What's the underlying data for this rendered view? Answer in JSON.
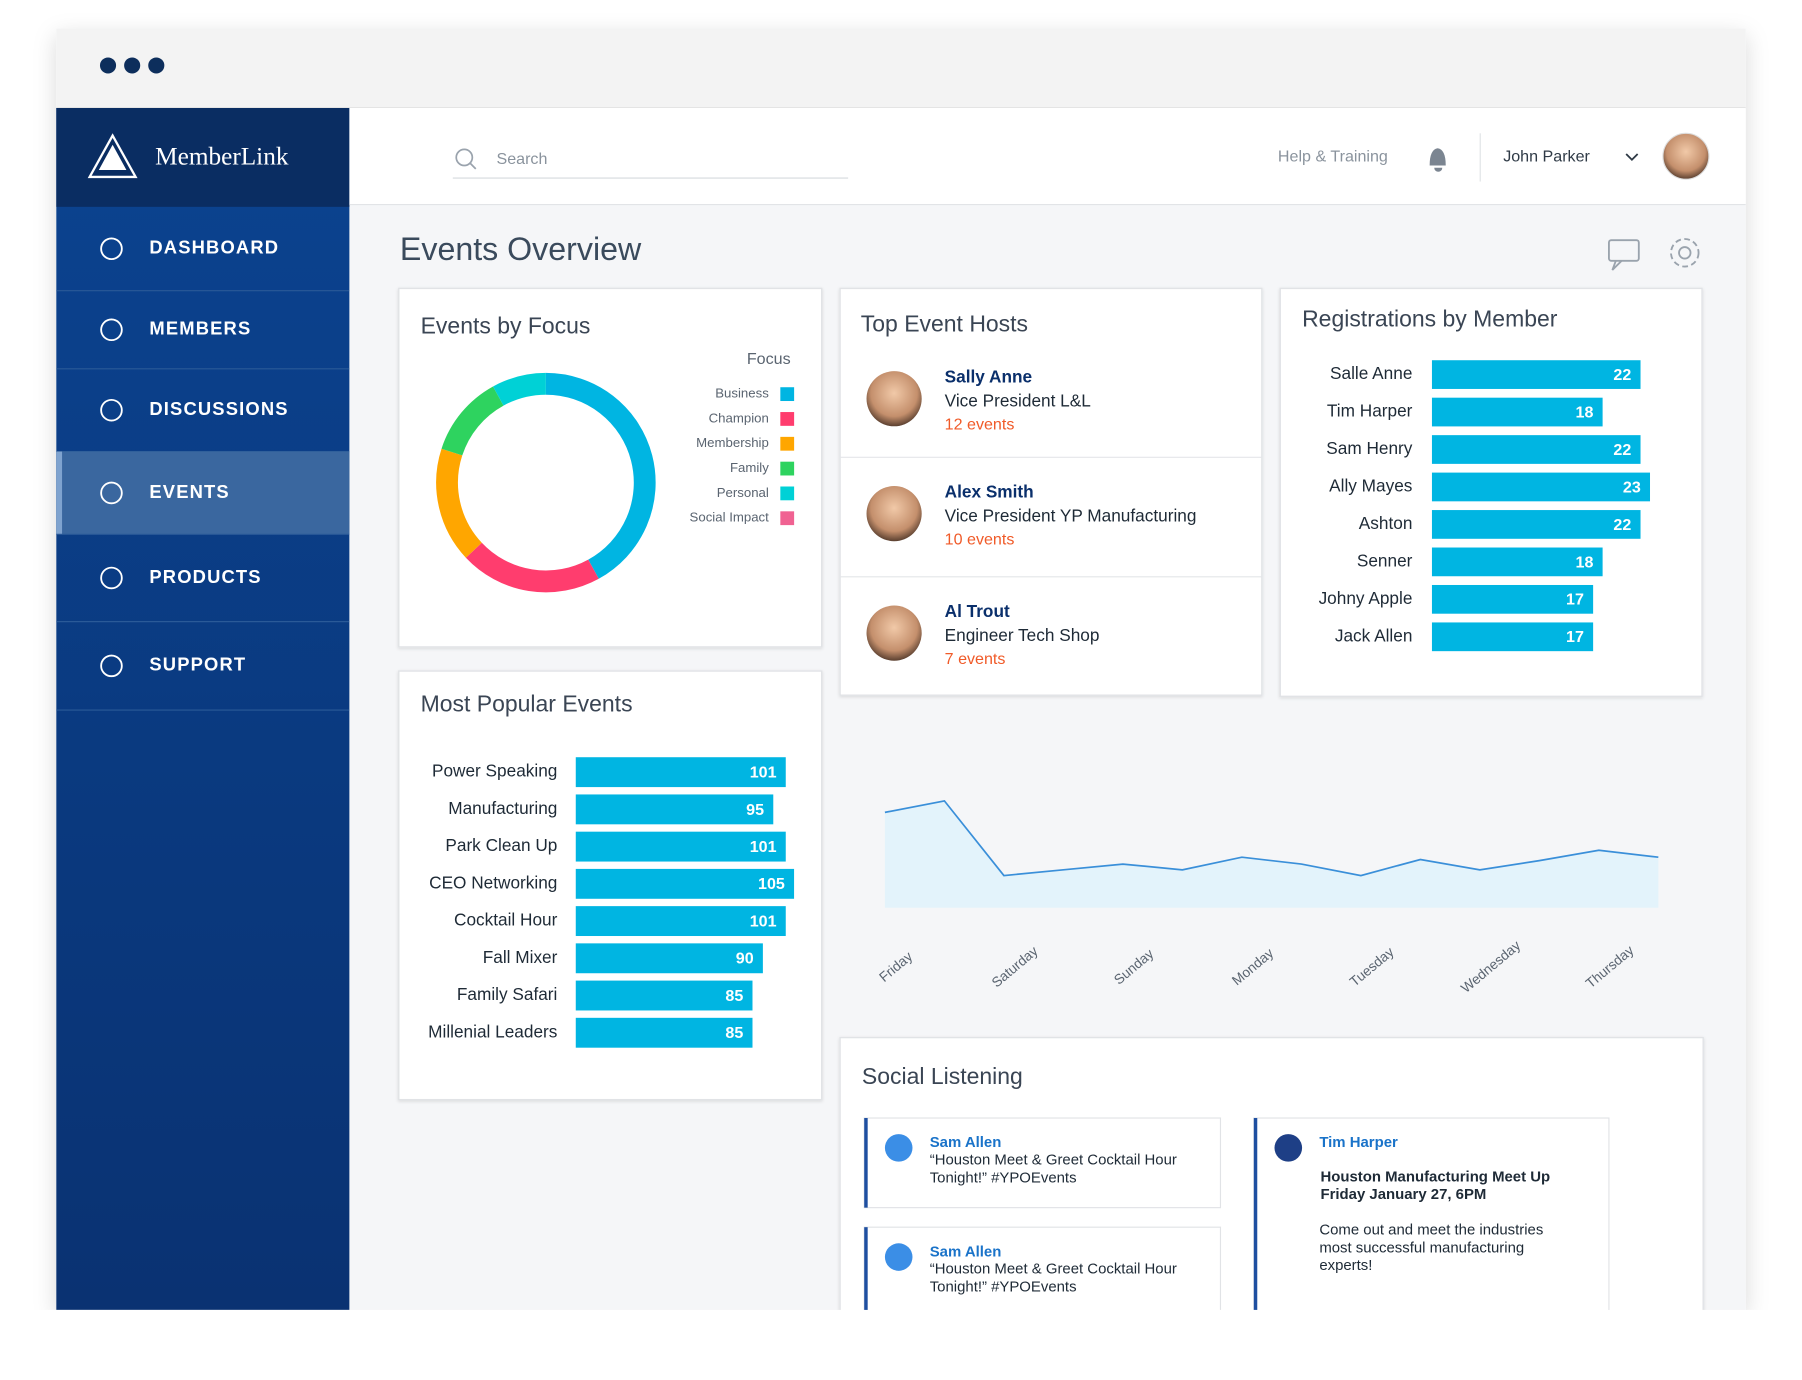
{
  "sidebar": {
    "brand": "MemberLink",
    "nav": [
      "DASHBOARD",
      "MEMBERS",
      "DISCUSSIONS",
      "EVENTS",
      "PRODUCTS",
      "SUPPORT"
    ],
    "active": 3
  },
  "header": {
    "search_placeholder": "Search",
    "help": "Help & Training",
    "user": "John Parker"
  },
  "page_title": "Events Overview",
  "hosts": {
    "title": "Top Event Hosts",
    "items": [
      {
        "name": "Sally Anne",
        "role": "Vice President L&L",
        "events": "12 events"
      },
      {
        "name": "Alex Smith",
        "role": "Vice President YP Manufacturing",
        "events": "10 events"
      },
      {
        "name": "Al Trout",
        "role": "Engineer Tech Shop",
        "events": "7 events"
      }
    ]
  },
  "social": {
    "title": "Social Listening",
    "posts": [
      {
        "author": "Sam Allen",
        "lines": [
          "“Houston Meet & Greet Cocktail Hour",
          "Tonight!” #YPOEvents"
        ]
      },
      {
        "author": "Sam Allen",
        "lines": [
          "“Houston Meet & Greet Cocktail Hour",
          "Tonight!” #YPOEvents"
        ]
      },
      {
        "author": "Tim Harper",
        "headline": [
          "Houston Manufacturing Meet Up",
          "Friday January 27, 6PM"
        ],
        "lines": [
          "Come out and meet the industries",
          "most successful manufacturing",
          "experts!"
        ]
      }
    ]
  },
  "chart_data": [
    {
      "type": "pie",
      "donut": true,
      "title": "Events by Focus",
      "legend_title": "Focus",
      "categories": [
        "Business",
        "Champion",
        "Membership",
        "Family",
        "Personal",
        "Social Impact"
      ],
      "values": [
        42,
        21,
        17,
        12,
        8,
        0
      ],
      "colors": [
        "#00b5e2",
        "#ff3d6e",
        "#ffa600",
        "#2ed35f",
        "#00d1d6",
        "#f06292"
      ]
    },
    {
      "type": "bar",
      "orientation": "horizontal",
      "title": "Most Popular Events",
      "categories": [
        "Power Speaking",
        "Manufacturing",
        "Park Clean Up",
        "CEO Networking",
        "Cocktail Hour",
        "Fall Mixer",
        "Family Safari",
        "Millenial Leaders"
      ],
      "values": [
        101,
        95,
        101,
        105,
        101,
        90,
        85,
        85
      ],
      "color": "#00b5e2",
      "xlim": [
        0,
        110
      ]
    },
    {
      "type": "bar",
      "orientation": "horizontal",
      "title": "Registrations by Member",
      "categories": [
        "Salle Anne",
        "Tim Harper",
        "Sam Henry",
        "Ally Mayes",
        "Ashton",
        "Senner",
        "Johny Apple",
        "Jack Allen"
      ],
      "values": [
        22,
        18,
        22,
        23,
        22,
        18,
        17,
        17
      ],
      "color": "#00b5e2",
      "xlim": [
        0,
        24
      ]
    },
    {
      "type": "line",
      "categories": [
        "Friday",
        null,
        "Saturday",
        null,
        "Sunday",
        null,
        "Monday",
        null,
        "Tuesday",
        null,
        "Wednesday",
        null,
        "Thursday",
        null
      ],
      "values": [
        83,
        93,
        28,
        33,
        38,
        33,
        44,
        38,
        28,
        42,
        33,
        41,
        50,
        44
      ],
      "color": "#3a8fd9",
      "fill": "#e3f3fb",
      "ylim": [
        0,
        100
      ]
    }
  ]
}
